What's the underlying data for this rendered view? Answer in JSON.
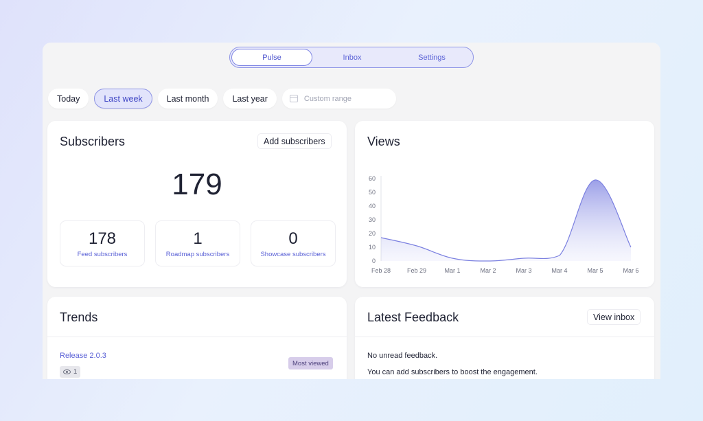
{
  "nav": {
    "tabs": [
      "Pulse",
      "Inbox",
      "Settings"
    ],
    "active": 0
  },
  "filters": {
    "chips": [
      "Today",
      "Last week",
      "Last month",
      "Last year"
    ],
    "active": 1,
    "custom_range_placeholder": "Custom range"
  },
  "subscribers": {
    "title": "Subscribers",
    "add_button": "Add subscribers",
    "total": "179",
    "stats": [
      {
        "value": "178",
        "label": "Feed subscribers"
      },
      {
        "value": "1",
        "label": "Roadmap subscribers"
      },
      {
        "value": "0",
        "label": "Showcase subscribers"
      }
    ]
  },
  "views": {
    "title": "Views",
    "chart_data": {
      "type": "area",
      "title": "Views",
      "xlabel": "",
      "ylabel": "",
      "categories": [
        "Feb 28",
        "Feb 29",
        "Mar 1",
        "Mar 2",
        "Mar 3",
        "Mar 4",
        "Mar 5",
        "Mar 6"
      ],
      "values": [
        17,
        11,
        2,
        0,
        2,
        4,
        59,
        10
      ],
      "yticks": [
        0,
        10,
        20,
        30,
        40,
        50,
        60
      ],
      "ylim": [
        0,
        60
      ],
      "grid": false,
      "color": "#7b80e0"
    }
  },
  "trends": {
    "title": "Trends",
    "release_link": "Release 2.0.3",
    "badge": "Most viewed",
    "view_count": "1"
  },
  "feedback": {
    "title": "Latest Feedback",
    "view_inbox": "View inbox",
    "line1": "No unread feedback.",
    "line2": "You can add subscribers to boost the engagement."
  }
}
